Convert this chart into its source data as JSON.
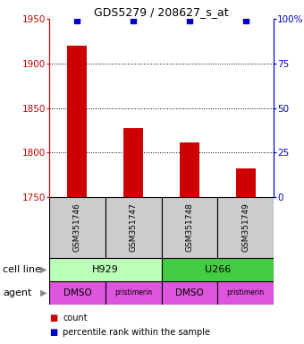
{
  "title": "GDS5279 / 208627_s_at",
  "samples": [
    "GSM351746",
    "GSM351747",
    "GSM351748",
    "GSM351749"
  ],
  "counts": [
    1920,
    1828,
    1812,
    1782
  ],
  "percentile_ranks": [
    99,
    99,
    99,
    99
  ],
  "ylim_left": [
    1750,
    1950
  ],
  "yticks_left": [
    1750,
    1800,
    1850,
    1900,
    1950
  ],
  "ylim_right": [
    0,
    100
  ],
  "yticks_right": [
    0,
    25,
    50,
    75,
    100
  ],
  "bar_color": "#cc0000",
  "dot_color": "#0000cc",
  "bar_width": 0.35,
  "cell_line_labels": [
    "H929",
    "U266"
  ],
  "cell_line_colors": [
    "#bbffbb",
    "#44cc44"
  ],
  "cell_line_spans": [
    [
      0,
      2
    ],
    [
      2,
      4
    ]
  ],
  "agent_labels": [
    "DMSO",
    "pristimerin",
    "DMSO",
    "pristimerin"
  ],
  "agent_color": "#dd55dd",
  "sample_box_color": "#cccccc",
  "legend_count_color": "#cc0000",
  "legend_pct_color": "#0000cc",
  "grid_color": "#000000",
  "title_fontsize": 9,
  "label_fontsize": 8,
  "tick_fontsize": 7.5
}
